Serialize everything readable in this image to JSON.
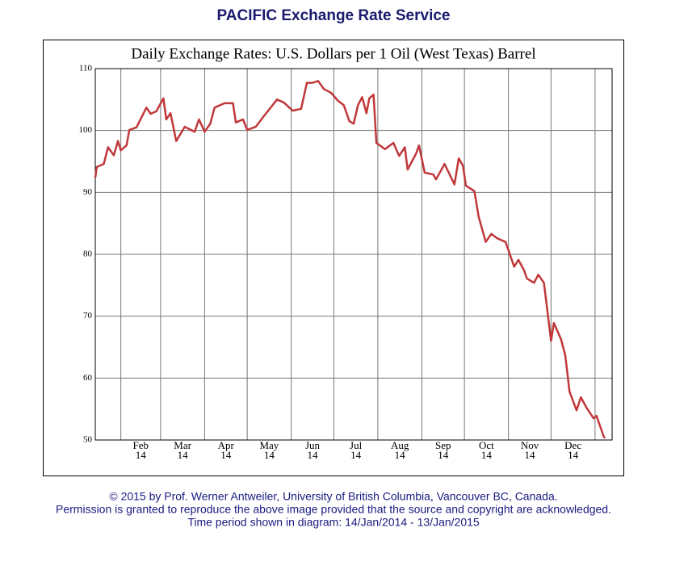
{
  "header": {
    "title": "PACIFIC Exchange Rate Service"
  },
  "chart_data": {
    "type": "line",
    "title": "Daily Exchange Rates: U.S. Dollars per 1 Oil (West Texas) Barrel",
    "color": "#c0383a",
    "x": [
      "2014-01-14",
      "2014-01-15",
      "2014-01-20",
      "2014-01-23",
      "2014-01-27",
      "2014-01-30",
      "2014-02-01",
      "2014-02-05",
      "2014-02-07",
      "2014-02-12",
      "2014-02-19",
      "2014-02-22",
      "2014-02-26",
      "2014-03-03",
      "2014-03-05",
      "2014-03-08",
      "2014-03-12",
      "2014-03-18",
      "2014-03-25",
      "2014-03-28",
      "2014-04-01",
      "2014-04-05",
      "2014-04-08",
      "2014-04-15",
      "2014-04-21",
      "2014-04-23",
      "2014-04-28",
      "2014-05-01",
      "2014-05-07",
      "2014-05-13",
      "2014-05-22",
      "2014-05-27",
      "2014-06-02",
      "2014-06-08",
      "2014-06-12",
      "2014-06-16",
      "2014-06-20",
      "2014-06-24",
      "2014-06-29",
      "2014-07-04",
      "2014-07-08",
      "2014-07-12",
      "2014-07-15",
      "2014-07-18",
      "2014-07-21",
      "2014-07-24",
      "2014-07-26",
      "2014-07-29",
      "2014-07-31",
      "2014-08-06",
      "2014-08-12",
      "2014-08-16",
      "2014-08-20",
      "2014-08-22",
      "2014-08-28",
      "2014-08-30",
      "2014-09-03",
      "2014-09-09",
      "2014-09-11",
      "2014-09-17",
      "2014-09-24",
      "2014-09-27",
      "2014-09-30",
      "2014-10-02",
      "2014-10-08",
      "2014-10-11",
      "2014-10-16",
      "2014-10-20",
      "2014-10-24",
      "2014-10-30",
      "2014-11-05",
      "2014-11-08",
      "2014-11-12",
      "2014-11-14",
      "2014-11-19",
      "2014-11-22",
      "2014-11-26",
      "2014-11-27",
      "2014-12-01",
      "2014-12-03",
      "2014-12-08",
      "2014-12-11",
      "2014-12-14",
      "2014-12-19",
      "2014-12-22",
      "2014-12-26",
      "2014-12-31",
      "2015-01-02",
      "2015-01-07",
      "2015-01-08"
    ],
    "values": [
      92.4,
      94.1,
      94.6,
      97.3,
      96,
      98.3,
      96.8,
      97.6,
      100.1,
      100.5,
      103.7,
      102.7,
      103.1,
      105.2,
      101.8,
      102.8,
      98.3,
      100.6,
      99.8,
      101.8,
      99.8,
      101.1,
      103.7,
      104.4,
      104.4,
      101.3,
      101.8,
      100.1,
      100.6,
      102.4,
      105,
      104.5,
      103.2,
      103.5,
      107.7,
      107.7,
      108,
      106.7,
      106.1,
      104.8,
      104.1,
      101.5,
      101.1,
      104.1,
      105.4,
      102.8,
      105.2,
      105.8,
      98,
      97,
      98,
      95.9,
      97.3,
      93.7,
      96.3,
      97.6,
      93.2,
      92.9,
      92.1,
      94.6,
      91.3,
      95.5,
      94.3,
      91.1,
      90.2,
      86.1,
      82,
      83.3,
      82.6,
      82,
      78,
      79.1,
      77.4,
      76.1,
      75.4,
      76.7,
      75.4,
      73.5,
      66,
      68.9,
      66.3,
      63.7,
      57.8,
      54.8,
      56.9,
      55.2,
      53.5,
      53.9,
      50.6,
      50.3
    ],
    "xlim": [
      "2014-01-14",
      "2015-01-13"
    ],
    "xticks": [
      {
        "value": "2014-02-01",
        "label": "Feb",
        "year": "14"
      },
      {
        "value": "2014-03-01",
        "label": "Mar",
        "year": "14"
      },
      {
        "value": "2014-04-01",
        "label": "Apr",
        "year": "14"
      },
      {
        "value": "2014-05-01",
        "label": "May",
        "year": "14"
      },
      {
        "value": "2014-06-01",
        "label": "Jun",
        "year": "14"
      },
      {
        "value": "2014-07-01",
        "label": "Jul",
        "year": "14"
      },
      {
        "value": "2014-08-01",
        "label": "Aug",
        "year": "14"
      },
      {
        "value": "2014-09-01",
        "label": "Sep",
        "year": "14"
      },
      {
        "value": "2014-10-01",
        "label": "Oct",
        "year": "14"
      },
      {
        "value": "2014-11-01",
        "label": "Nov",
        "year": "14"
      },
      {
        "value": "2014-12-01",
        "label": "Dec",
        "year": "14"
      },
      {
        "value": "2015-01-01",
        "label": null
      }
    ],
    "ylim": [
      50,
      110
    ],
    "yticks": [
      50,
      60,
      70,
      80,
      90,
      100,
      110
    ],
    "grid": true
  },
  "footer": {
    "lines": [
      "© 2015 by Prof. Werner Antweiler, University of British Columbia, Vancouver BC, Canada.",
      "Permission is granted to reproduce the above image provided that the source and copyright are acknowledged.",
      "Time period shown in diagram: 14/Jan/2014 - 13/Jan/2015"
    ]
  }
}
